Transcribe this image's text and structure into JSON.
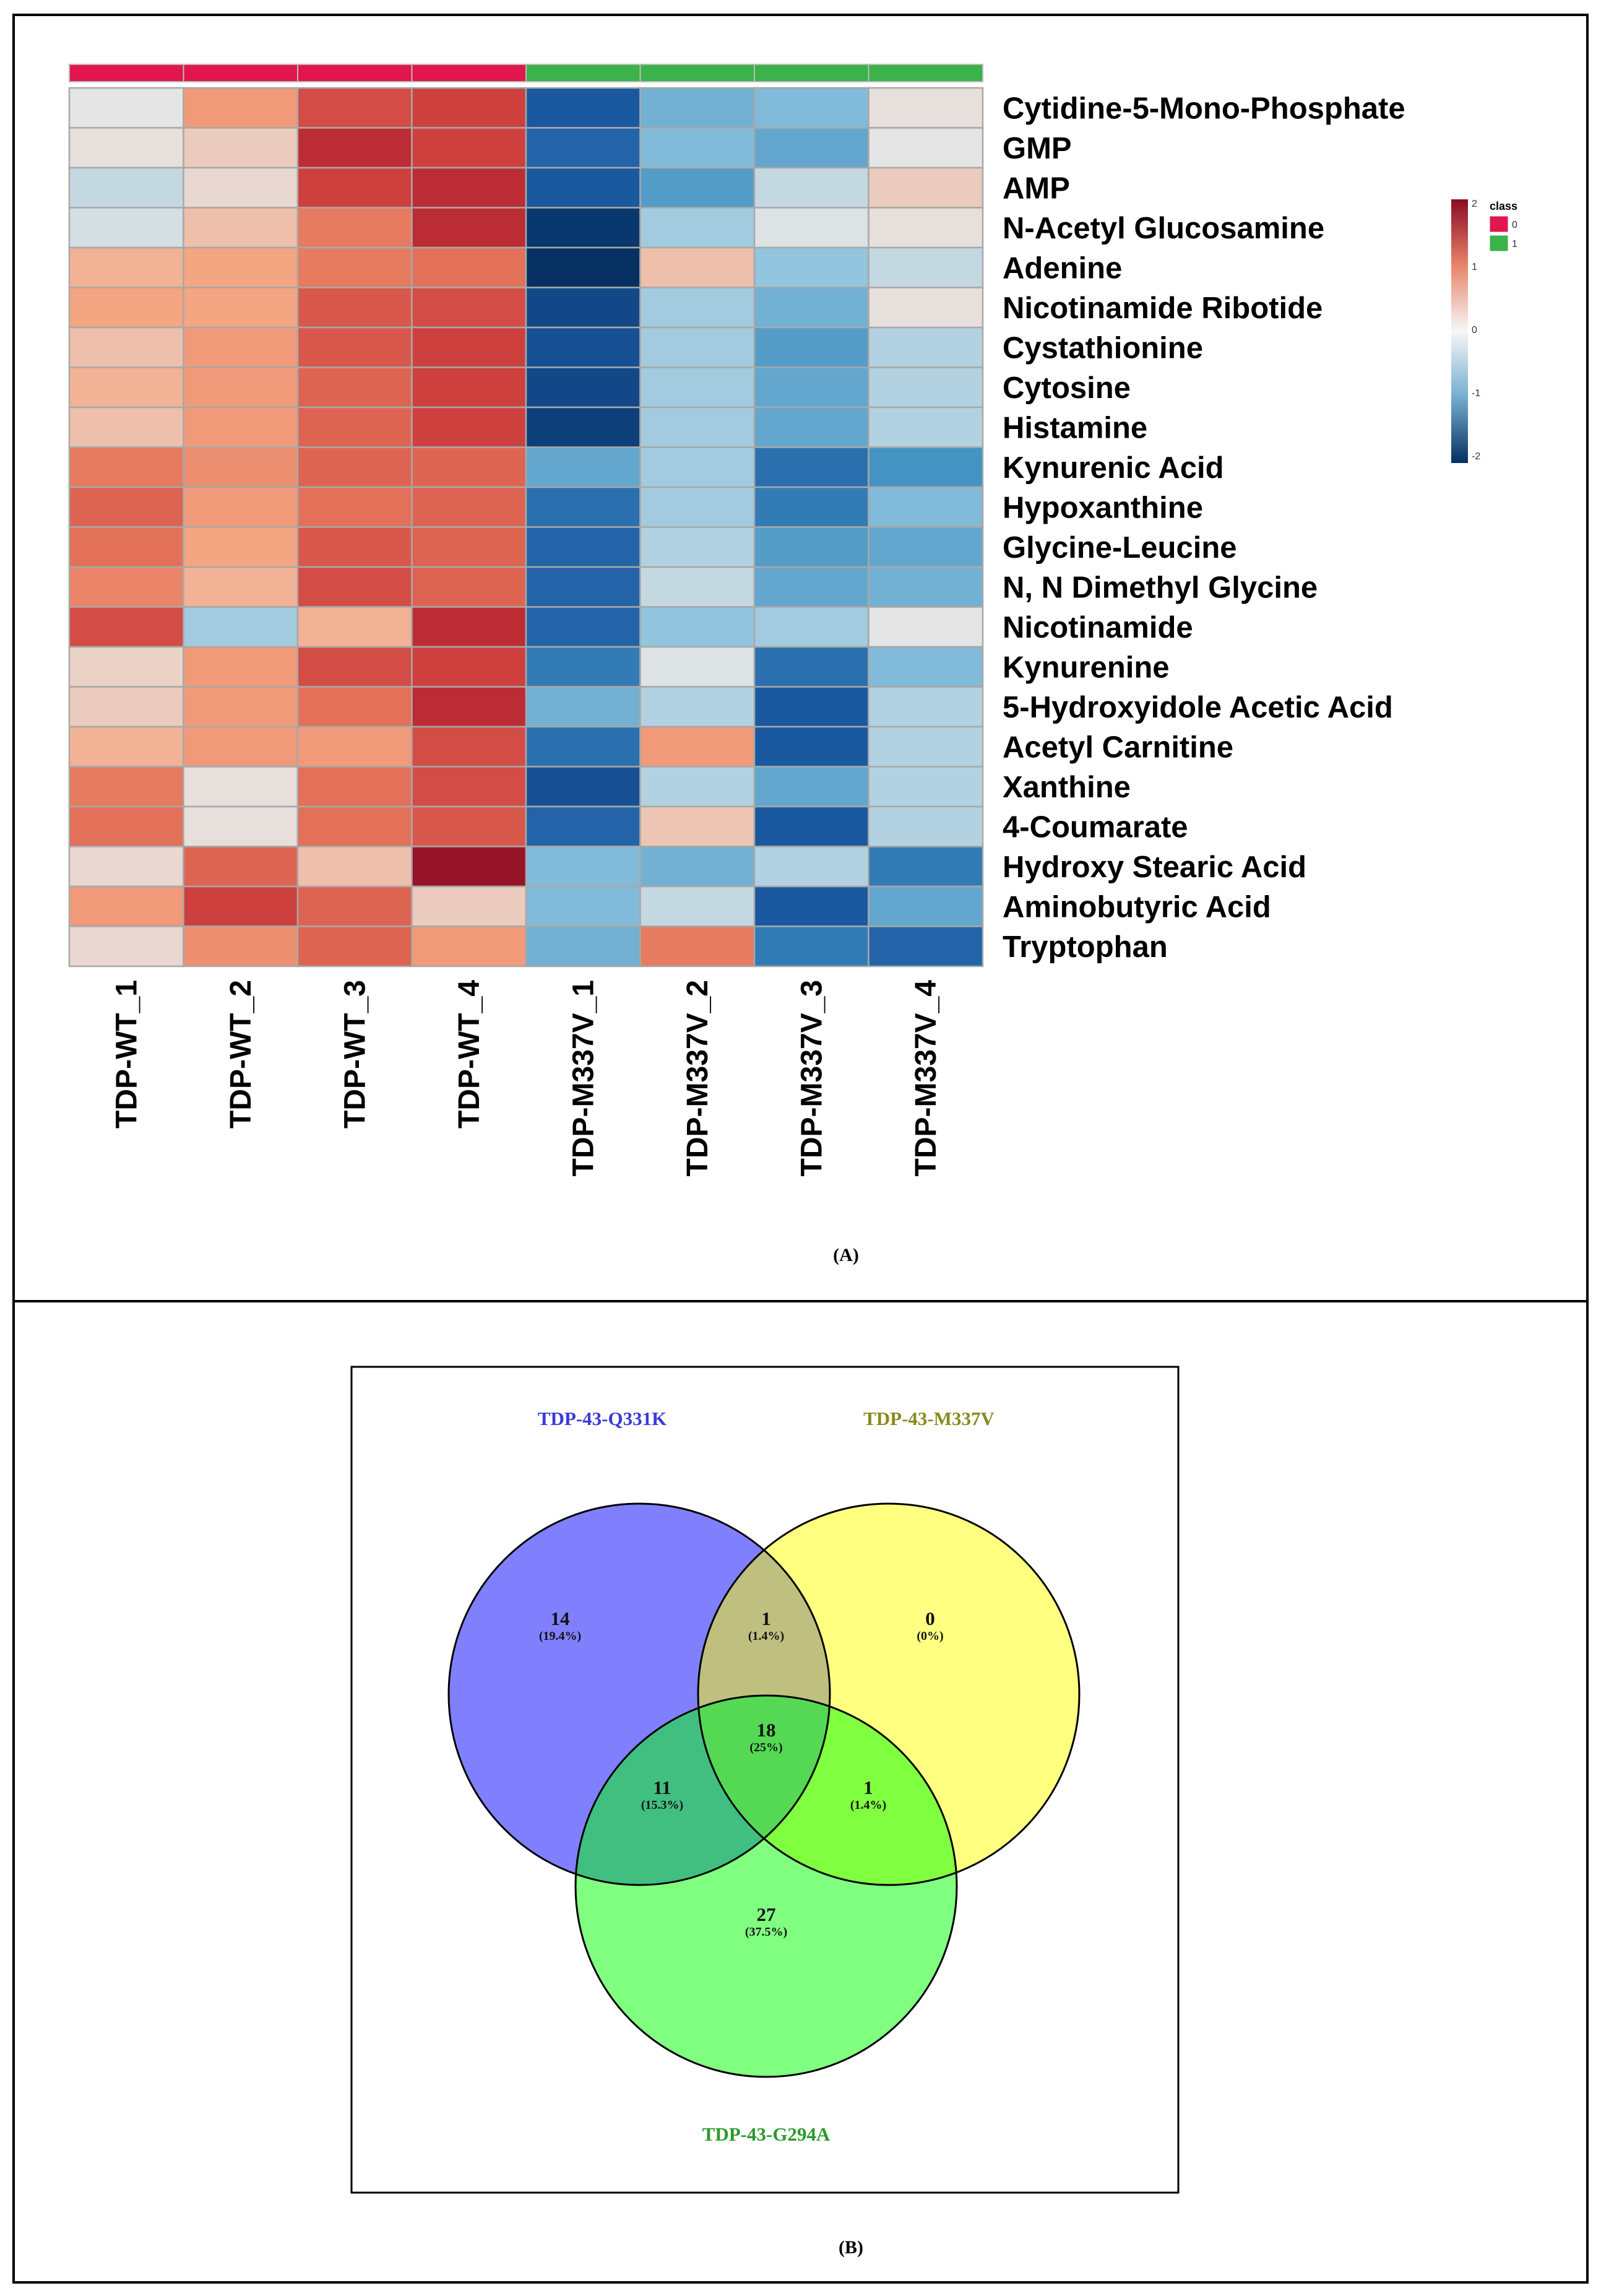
{
  "panel_a": {
    "label": "(A)",
    "chart_data": {
      "type": "heatmap",
      "columns": [
        "TDP-WT_1",
        "TDP-WT_2",
        "TDP-WT_3",
        "TDP-WT_4",
        "TDP-M337V_1",
        "TDP-M337V_2",
        "TDP-M337V_3",
        "TDP-M337V_4"
      ],
      "column_class": [
        0,
        0,
        0,
        0,
        1,
        1,
        1,
        1
      ],
      "rows": [
        "Cytidine-5-Mono-Phosphate",
        "GMP",
        "AMP",
        "N-Acetyl Glucosamine",
        "Adenine",
        "Nicotinamide Ribotide",
        "Cystathionine",
        "Cytosine",
        "Histamine",
        "Kynurenic Acid",
        "Hypoxanthine",
        "Glycine-Leucine",
        "N, N Dimethyl Glycine",
        "Nicotinamide",
        "Kynurenine",
        "5-Hydroxyidole Acetic Acid",
        "Acetyl Carnitine",
        "Xanthine",
        "4-Coumarate",
        "Hydroxy Stearic Acid",
        "Aminobutyric Acid",
        "Tryptophan"
      ],
      "values": [
        [
          0.0,
          0.6,
          1.3,
          1.4,
          -1.5,
          -0.7,
          -0.6,
          0.05
        ],
        [
          0.05,
          0.2,
          1.6,
          1.4,
          -1.4,
          -0.6,
          -0.8,
          0.0
        ],
        [
          -0.2,
          0.1,
          1.4,
          1.6,
          -1.5,
          -0.9,
          -0.2,
          0.2
        ],
        [
          -0.1,
          0.3,
          0.9,
          1.6,
          -1.9,
          -0.4,
          -0.05,
          0.05
        ],
        [
          0.4,
          0.5,
          0.9,
          1.0,
          -2.0,
          0.3,
          -0.5,
          -0.2
        ],
        [
          0.5,
          0.5,
          1.2,
          1.3,
          -1.7,
          -0.4,
          -0.7,
          0.05
        ],
        [
          0.3,
          0.6,
          1.2,
          1.4,
          -1.6,
          -0.4,
          -0.9,
          -0.3
        ],
        [
          0.4,
          0.6,
          1.1,
          1.4,
          -1.7,
          -0.4,
          -0.8,
          -0.3
        ],
        [
          0.3,
          0.6,
          1.1,
          1.4,
          -1.8,
          -0.4,
          -0.8,
          -0.3
        ],
        [
          0.9,
          0.7,
          1.1,
          1.1,
          -0.8,
          -0.4,
          -1.3,
          -1.0
        ],
        [
          1.1,
          0.6,
          1.0,
          1.1,
          -1.3,
          -0.4,
          -1.2,
          -0.6
        ],
        [
          1.0,
          0.5,
          1.2,
          1.1,
          -1.4,
          -0.3,
          -0.9,
          -0.8
        ],
        [
          0.8,
          0.4,
          1.3,
          1.1,
          -1.4,
          -0.2,
          -0.8,
          -0.7
        ],
        [
          1.3,
          -0.4,
          0.4,
          1.6,
          -1.4,
          -0.5,
          -0.4,
          0.0
        ],
        [
          0.15,
          0.6,
          1.3,
          1.4,
          -1.2,
          -0.05,
          -1.3,
          -0.6
        ],
        [
          0.2,
          0.6,
          1.0,
          1.6,
          -0.7,
          -0.3,
          -1.5,
          -0.3
        ],
        [
          0.4,
          0.6,
          0.6,
          1.3,
          -1.3,
          0.6,
          -1.5,
          -0.3
        ],
        [
          0.9,
          0.05,
          1.0,
          1.3,
          -1.6,
          -0.3,
          -0.8,
          -0.3
        ],
        [
          1.0,
          0.05,
          1.0,
          1.2,
          -1.4,
          0.25,
          -1.5,
          -0.3
        ],
        [
          0.1,
          1.1,
          0.3,
          1.9,
          -0.6,
          -0.7,
          -0.3,
          -1.2
        ],
        [
          0.6,
          1.4,
          1.1,
          0.2,
          -0.6,
          -0.2,
          -1.5,
          -0.8
        ],
        [
          0.1,
          0.7,
          1.1,
          0.6,
          -0.7,
          0.9,
          -1.2,
          -1.4
        ]
      ],
      "color_range": [
        -2,
        2
      ],
      "colorbar_ticks": [
        "2",
        "1",
        "0",
        "-1",
        "-2"
      ],
      "legend_title": "class",
      "legend_entries": [
        {
          "label": "0",
          "color": "#e0164d"
        },
        {
          "label": "1",
          "color": "#3bb24a"
        }
      ],
      "colors": {
        "low": "#053061",
        "mid": "#f7f7f7",
        "high": "#8b0b23"
      }
    }
  },
  "panel_b": {
    "label": "(B)",
    "chart_data": {
      "type": "venn",
      "sets": [
        {
          "name": "TDP-43-Q331K",
          "color": "#8080ff",
          "label_color": "#3a3adb"
        },
        {
          "name": "TDP-43-M337V",
          "color": "#ffff80",
          "label_color": "#8a8a1e"
        },
        {
          "name": "TDP-43-G294A",
          "color": "#80ff80",
          "label_color": "#2a9a2a"
        }
      ],
      "regions": [
        {
          "sets": [
            "TDP-43-Q331K"
          ],
          "count": "14",
          "percent": "(19.4%)",
          "color": "#8080ff"
        },
        {
          "sets": [
            "TDP-43-Q331K",
            "TDP-43-M337V"
          ],
          "count": "1",
          "percent": "(1.4%)",
          "color": "#bfbf80"
        },
        {
          "sets": [
            "TDP-43-M337V"
          ],
          "count": "0",
          "percent": "(0%)",
          "color": "#ffff80"
        },
        {
          "sets": [
            "TDP-43-Q331K",
            "TDP-43-M337V",
            "TDP-43-G294A"
          ],
          "count": "18",
          "percent": "(25%)",
          "color": "#55d955"
        },
        {
          "sets": [
            "TDP-43-Q331K",
            "TDP-43-G294A"
          ],
          "count": "11",
          "percent": "(15.3%)",
          "color": "#40bf80"
        },
        {
          "sets": [
            "TDP-43-M337V",
            "TDP-43-G294A"
          ],
          "count": "1",
          "percent": "(1.4%)",
          "color": "#80ff40"
        },
        {
          "sets": [
            "TDP-43-G294A"
          ],
          "count": "27",
          "percent": "(37.5%)",
          "color": "#80ff80"
        }
      ]
    }
  }
}
